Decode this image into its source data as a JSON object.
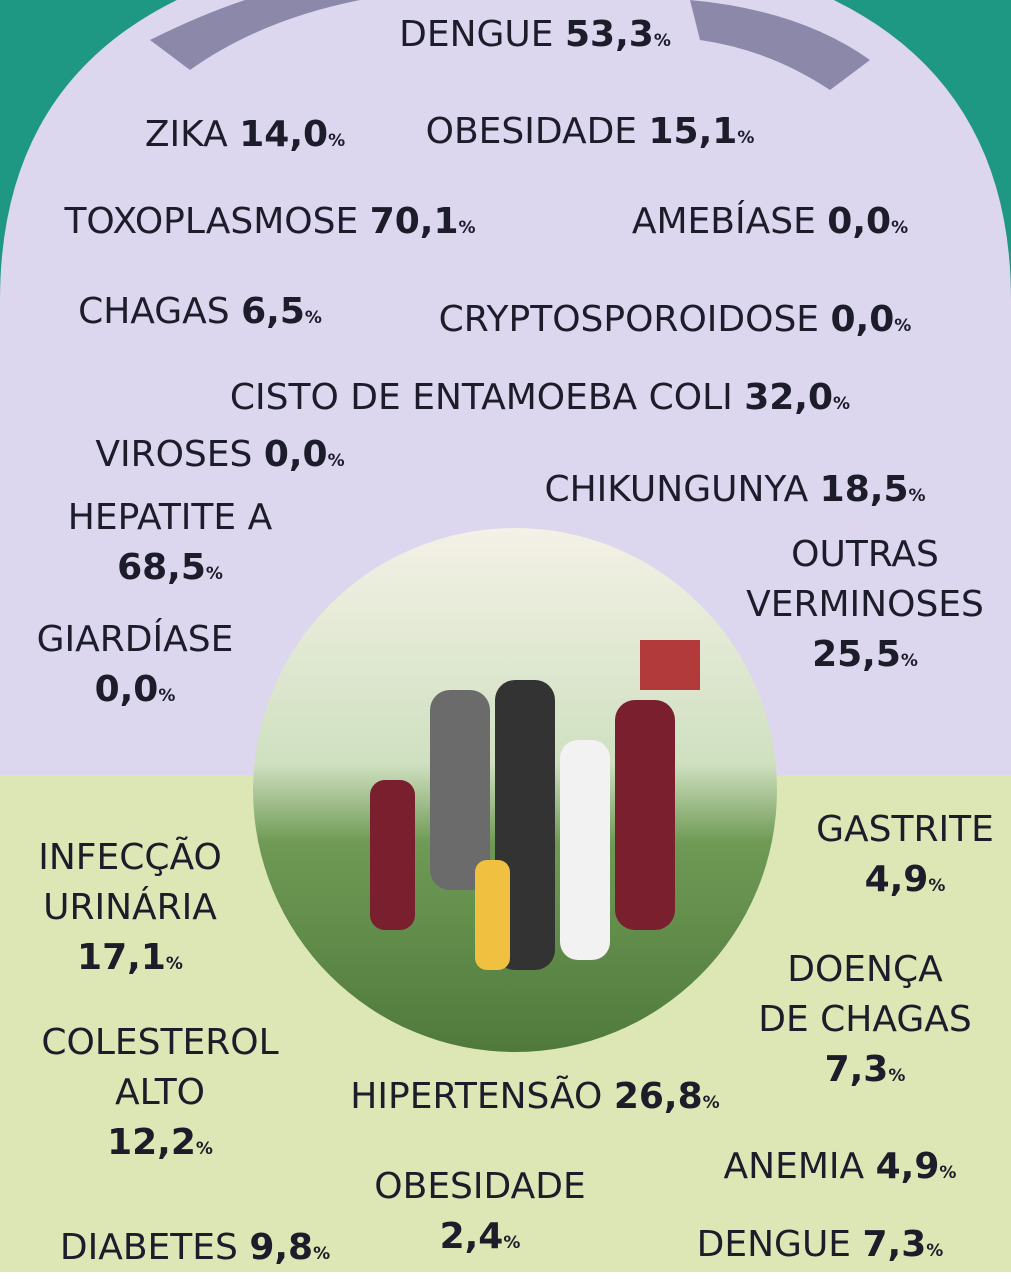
{
  "items": [
    {
      "name": [
        "DENGUE"
      ],
      "value": "53,3",
      "unit": "%"
    },
    {
      "name": [
        "ZIKA"
      ],
      "value": "14,0",
      "unit": "%"
    },
    {
      "name": [
        "OBESIDADE"
      ],
      "value": "15,1",
      "unit": "%"
    },
    {
      "name": [
        "TOXOPLASMOSE"
      ],
      "value": "70,1",
      "unit": "%"
    },
    {
      "name": [
        "AMEBÍASE"
      ],
      "value": "0,0",
      "unit": "%"
    },
    {
      "name": [
        "CHAGAS"
      ],
      "value": "6,5",
      "unit": "%"
    },
    {
      "name": [
        "CRYPTOSPOROIDOSE"
      ],
      "value": "0,0",
      "unit": "%"
    },
    {
      "name": [
        "CISTO DE ENTAMOEBA COLI"
      ],
      "value": "32,0",
      "unit": "%"
    },
    {
      "name": [
        "VIROSES"
      ],
      "value": "0,0",
      "unit": "%"
    },
    {
      "name": [
        "CHIKUNGUNYA"
      ],
      "value": "18,5",
      "unit": "%"
    },
    {
      "name": [
        "HEPATITE A"
      ],
      "value": "68,5",
      "unit": "%"
    },
    {
      "name": [
        "OUTRAS",
        "VERMINOSES"
      ],
      "value": "25,5",
      "unit": "%"
    },
    {
      "name": [
        "GIARDÍASE"
      ],
      "value": "0,0",
      "unit": "%"
    },
    {
      "name": [
        "GASTRITE"
      ],
      "value": "4,9",
      "unit": "%"
    },
    {
      "name": [
        "INFECÇÃO",
        "URINÁRIA"
      ],
      "value": "17,1",
      "unit": "%"
    },
    {
      "name": [
        "DOENÇA",
        "DE CHAGAS"
      ],
      "value": "7,3",
      "unit": "%"
    },
    {
      "name": [
        "COLESTEROL",
        "ALTO"
      ],
      "value": "12,2",
      "unit": "%"
    },
    {
      "name": [
        "HIPERTENSÃO"
      ],
      "value": "26,8",
      "unit": "%"
    },
    {
      "name": [
        "OBESIDADE"
      ],
      "value": "2,4",
      "unit": "%"
    },
    {
      "name": [
        "ANEMIA"
      ],
      "value": "4,9",
      "unit": "%"
    },
    {
      "name": [
        "DIABETES"
      ],
      "value": "9,8",
      "unit": "%"
    },
    {
      "name": [
        "DENGUE"
      ],
      "value": "7,3",
      "unit": "%"
    }
  ]
}
